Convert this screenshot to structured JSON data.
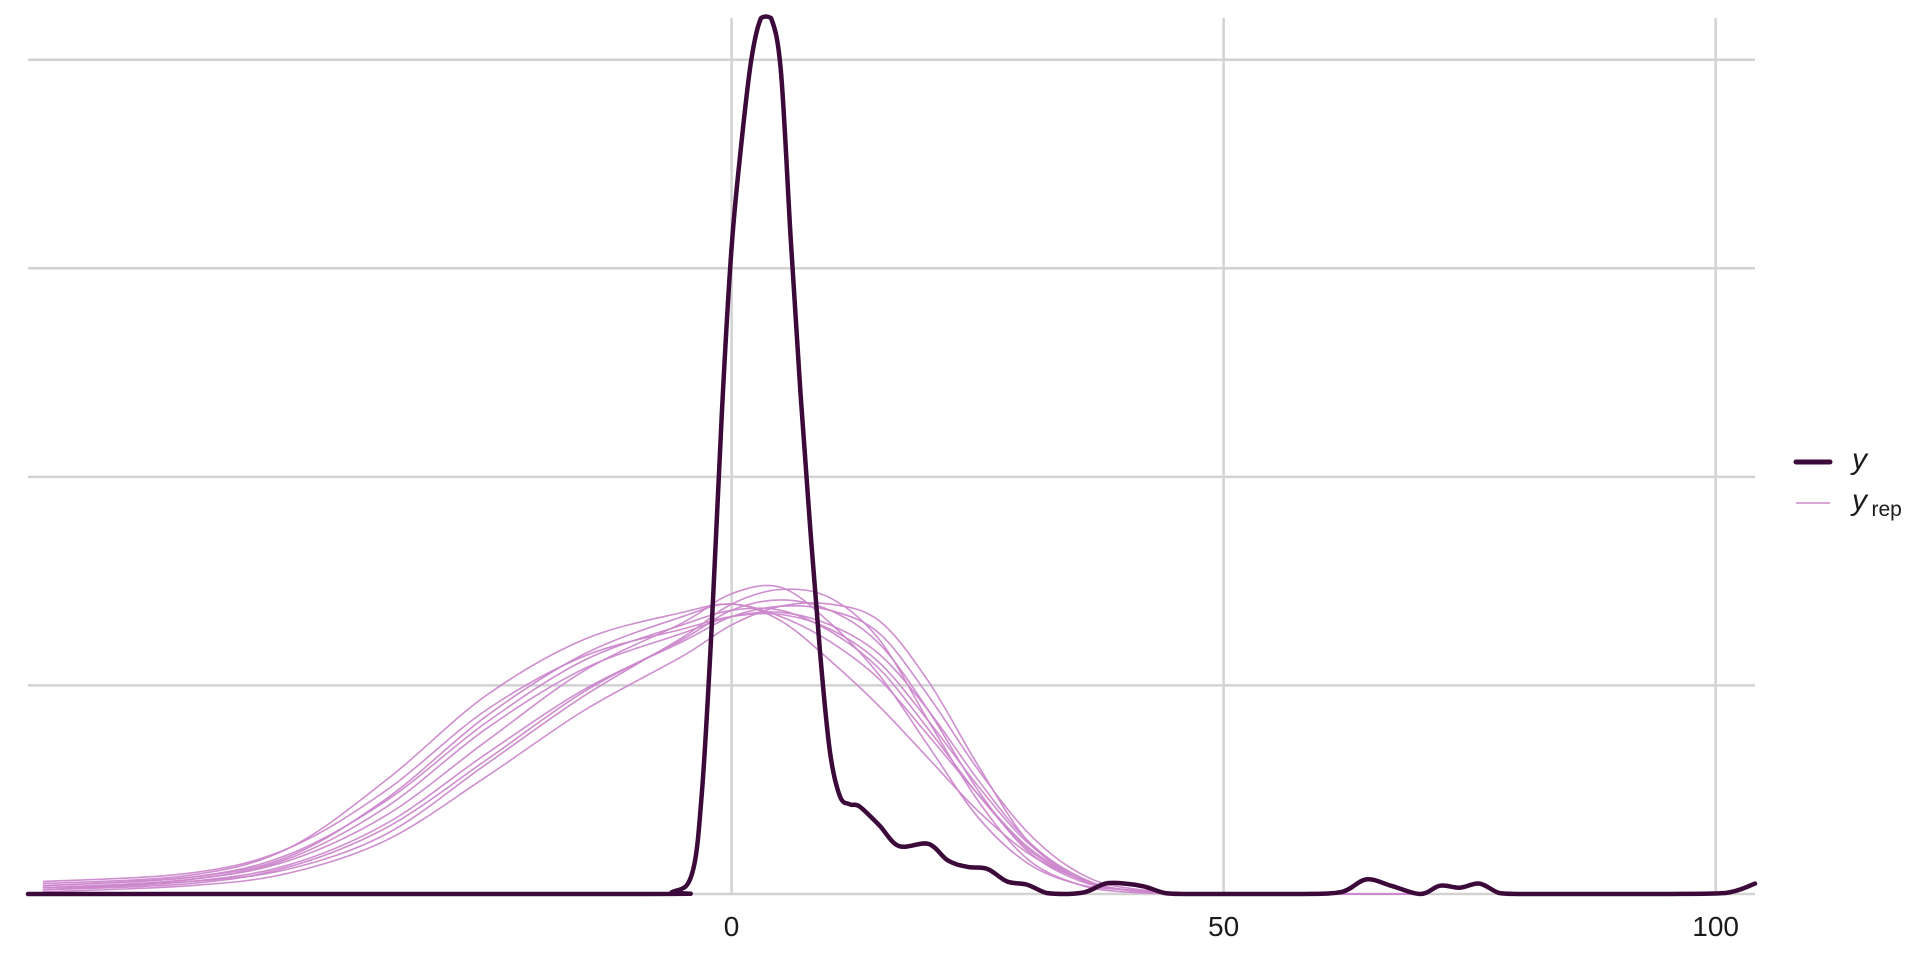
{
  "chart_data": {
    "type": "line",
    "title": "",
    "xlabel": "",
    "ylabel": "",
    "xlim": [
      -71.5,
      104
    ],
    "ylim": [
      0,
      0.042
    ],
    "x_ticks": [
      0,
      50,
      100
    ],
    "x_tick_labels": [
      "0",
      "50",
      "100"
    ],
    "y_gridlines": [
      0,
      0.01,
      0.02,
      0.03,
      0.04
    ],
    "y_tick_labels_visible": false,
    "grid": true,
    "legend_position": "right",
    "legend": [
      {
        "label": "y",
        "subscript": "",
        "style": "thick"
      },
      {
        "label": "y",
        "subscript": "rep",
        "style": "thin"
      }
    ],
    "colors": {
      "y": "#3b0a3a",
      "yrep": "#cc88cc",
      "grid": "#d2d2d2",
      "axis_text": "#1a1a1a"
    },
    "series": [
      {
        "name": "y",
        "x": [
          -71.5,
          -10,
          -6,
          -4,
          -3,
          -2,
          -1,
          0,
          1,
          2,
          3,
          4,
          5,
          6,
          7,
          8,
          9,
          10,
          11,
          12,
          13,
          15,
          17,
          20,
          22,
          24,
          26,
          28,
          30,
          32,
          34,
          36,
          38,
          40,
          42,
          44,
          46,
          50,
          58,
          62,
          64.5,
          67,
          70,
          72,
          74,
          76,
          78,
          80,
          85,
          95,
          101,
          104
        ],
        "y": [
          0,
          0,
          0.0001,
          0.001,
          0.005,
          0.013,
          0.023,
          0.031,
          0.036,
          0.04,
          0.042,
          0.042,
          0.0395,
          0.0315,
          0.024,
          0.0175,
          0.0115,
          0.0068,
          0.0047,
          0.0043,
          0.0042,
          0.0033,
          0.0023,
          0.0024,
          0.0016,
          0.0013,
          0.0012,
          0.0006,
          0.00045,
          5e-05,
          0,
          0.0001,
          0.0005,
          0.0005,
          0.00035,
          5e-05,
          0,
          0,
          0,
          0.0001,
          0.0007,
          0.0004,
          0,
          0.0004,
          0.0003,
          0.0005,
          5e-05,
          0,
          0,
          0,
          5e-05,
          0.0005
        ]
      },
      {
        "name": "y_rep",
        "replicates": [
          {
            "x": [
              -70,
              -55,
              -45,
              -35,
              -25,
              -15,
              -5,
              0,
              5,
              10,
              15,
              20,
              25,
              30,
              35,
              40,
              50,
              70
            ],
            "y": [
              0.0002,
              0.0007,
              0.0016,
              0.0038,
              0.0073,
              0.0107,
              0.013,
              0.0144,
              0.0147,
              0.013,
              0.0105,
              0.0071,
              0.0037,
              0.0015,
              0.0005,
              0.0002,
              0,
              0
            ]
          },
          {
            "x": [
              -70,
              -55,
              -45,
              -35,
              -25,
              -15,
              -5,
              0,
              5,
              10,
              15,
              20,
              25,
              30,
              35,
              40,
              50,
              70
            ],
            "y": [
              0.0004,
              0.0008,
              0.0018,
              0.0046,
              0.0085,
              0.0115,
              0.0133,
              0.0139,
              0.0131,
              0.0112,
              0.009,
              0.0065,
              0.004,
              0.002,
              0.0008,
              0.0002,
              0,
              0
            ]
          },
          {
            "x": [
              -70,
              -55,
              -45,
              -35,
              -25,
              -15,
              -5,
              0,
              5,
              10,
              15,
              20,
              25,
              30,
              35,
              40,
              50,
              70
            ],
            "y": [
              0.0003,
              0.0006,
              0.0012,
              0.0029,
              0.0062,
              0.0095,
              0.0123,
              0.0139,
              0.0146,
              0.0142,
              0.0122,
              0.0083,
              0.0045,
              0.0017,
              0.0005,
              0.0001,
              0,
              0
            ]
          },
          {
            "x": [
              -70,
              -55,
              -45,
              -35,
              -25,
              -15,
              -5,
              0,
              5,
              10,
              15,
              20,
              25,
              30,
              35,
              40,
              50,
              70
            ],
            "y": [
              0.0005,
              0.0009,
              0.0022,
              0.0055,
              0.0095,
              0.0122,
              0.0135,
              0.0139,
              0.0133,
              0.0121,
              0.0103,
              0.0076,
              0.0048,
              0.0023,
              0.0008,
              0.0002,
              0,
              0
            ]
          },
          {
            "x": [
              -70,
              -55,
              -45,
              -35,
              -25,
              -15,
              -5,
              0,
              5,
              10,
              15,
              20,
              25,
              30,
              35,
              40,
              50,
              70
            ],
            "y": [
              0.0002,
              0.0006,
              0.0014,
              0.0034,
              0.0067,
              0.0098,
              0.0121,
              0.0133,
              0.0138,
              0.0136,
              0.0125,
              0.0095,
              0.006,
              0.003,
              0.0011,
              0.0003,
              0,
              0
            ]
          },
          {
            "x": [
              -70,
              -55,
              -45,
              -35,
              -25,
              -15,
              -5,
              0,
              5,
              10,
              15,
              20,
              25,
              30,
              35,
              40,
              50,
              70
            ],
            "y": [
              0.0003,
              0.0007,
              0.0017,
              0.0042,
              0.0079,
              0.0108,
              0.0125,
              0.0133,
              0.0135,
              0.0129,
              0.0115,
              0.0088,
              0.0055,
              0.0026,
              0.0009,
              0.0002,
              0,
              0
            ]
          },
          {
            "x": [
              -70,
              -55,
              -45,
              -35,
              -25,
              -15,
              -5,
              0,
              5,
              10,
              15,
              20,
              25,
              30,
              35,
              40,
              50,
              70
            ],
            "y": [
              0.0001,
              0.0004,
              0.001,
              0.0026,
              0.0056,
              0.0088,
              0.0114,
              0.0129,
              0.0138,
              0.0139,
              0.0131,
              0.0102,
              0.0062,
              0.0026,
              0.0008,
              0.0002,
              0,
              0
            ]
          },
          {
            "x": [
              -70,
              -55,
              -45,
              -35,
              -25,
              -15,
              -5,
              0,
              5,
              10,
              15,
              20,
              25,
              30,
              35,
              40,
              50,
              70
            ],
            "y": [
              0.0006,
              0.001,
              0.0022,
              0.005,
              0.0088,
              0.0114,
              0.0127,
              0.0133,
              0.0134,
              0.0127,
              0.0111,
              0.0083,
              0.0052,
              0.0025,
              0.0009,
              0.0002,
              0,
              0
            ]
          },
          {
            "x": [
              -70,
              -55,
              -45,
              -35,
              -25,
              -15,
              -5,
              0,
              5,
              10,
              15,
              20,
              25,
              30,
              35,
              40,
              50,
              70
            ],
            "y": [
              0.0002,
              0.0005,
              0.0013,
              0.0032,
              0.0064,
              0.0097,
              0.0122,
              0.0136,
              0.0141,
              0.0136,
              0.012,
              0.0088,
              0.005,
              0.0021,
              0.0007,
              0.0002,
              0,
              0
            ]
          },
          {
            "x": [
              -70,
              -55,
              -45,
              -35,
              -25,
              -15,
              -5,
              0,
              5,
              10,
              15,
              20,
              25,
              30,
              35,
              40,
              50,
              70
            ],
            "y": [
              0.0004,
              0.0008,
              0.0019,
              0.0045,
              0.0082,
              0.0112,
              0.0129,
              0.0136,
              0.0136,
              0.0126,
              0.0108,
              0.0079,
              0.0048,
              0.0022,
              0.0008,
              0.0002,
              0,
              0
            ]
          }
        ]
      }
    ]
  }
}
